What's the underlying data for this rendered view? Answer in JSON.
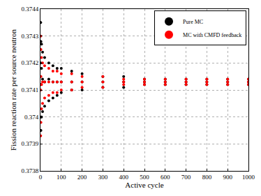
{
  "chart_data": {
    "type": "scatter",
    "x_label": "Active cycle",
    "y_label": "Fission reaction rate per source neutron",
    "x": [
      1,
      1,
      1,
      2,
      2,
      2,
      5,
      5,
      5,
      10,
      10,
      10,
      20,
      20,
      20,
      40,
      40,
      40,
      60,
      60,
      60,
      80,
      80,
      80,
      100,
      100,
      100,
      150,
      150,
      150,
      200,
      200,
      200,
      300,
      300,
      300,
      400,
      400,
      400,
      500,
      500,
      500,
      600,
      600,
      600,
      700,
      700,
      700,
      800,
      800,
      800,
      900,
      900,
      900,
      1000,
      1000,
      1000
    ],
    "series": [
      {
        "name": "Pure MC",
        "color": "#000000",
        "marker": "circle",
        "values": [
          0.37435,
          0.374,
          0.3742,
          0.37428,
          0.37395,
          0.37412,
          0.37427,
          0.374,
          0.37418,
          0.37424,
          0.37402,
          0.37414,
          0.37422,
          0.37404,
          0.37413,
          0.3742,
          0.37406,
          0.37414,
          0.37419,
          0.37407,
          0.37413,
          0.37418,
          0.37408,
          0.37413,
          0.37418,
          0.37409,
          0.37413,
          0.37417,
          0.3741,
          0.37413,
          0.37416,
          0.3741,
          0.37413,
          0.37415,
          0.37411,
          0.37413,
          0.37415,
          0.37411,
          0.37413,
          0.37414,
          0.37412,
          0.37413,
          0.37414,
          0.37412,
          0.37413,
          0.37414,
          0.37412,
          0.37413,
          0.37414,
          0.37412,
          0.37413,
          0.37414,
          0.37412,
          0.37413,
          0.37414,
          0.37412,
          0.37413
        ]
      },
      {
        "name": "MC with CMFD feedback",
        "color": "#ff0000",
        "marker": "circle",
        "values": [
          0.3743,
          0.37393,
          0.3741,
          0.37425,
          0.37398,
          0.37415,
          0.37422,
          0.37403,
          0.37412,
          0.3742,
          0.37405,
          0.37413,
          0.37419,
          0.37407,
          0.37413,
          0.37418,
          0.37408,
          0.37413,
          0.37417,
          0.37409,
          0.37413,
          0.37417,
          0.37409,
          0.37413,
          0.37416,
          0.3741,
          0.37413,
          0.37416,
          0.3741,
          0.37413,
          0.37415,
          0.37411,
          0.37413,
          0.37415,
          0.37411,
          0.37413,
          0.37414,
          0.37412,
          0.37413,
          0.37414,
          0.37412,
          0.37413,
          0.37414,
          0.37412,
          0.37413,
          0.37414,
          0.37412,
          0.37413,
          0.37414,
          0.37412,
          0.37413,
          0.37414,
          0.37412,
          0.37413,
          0.37414,
          0.37412,
          0.37413
        ]
      }
    ],
    "xlim": [
      0,
      1000
    ],
    "xticks": [
      0,
      100,
      200,
      300,
      400,
      500,
      600,
      700,
      800,
      900,
      1000
    ],
    "ylim": [
      0.3738,
      0.3744
    ],
    "yticks": [
      0.3738,
      0.3739,
      0.374,
      0.3741,
      0.3742,
      0.3743,
      0.3744
    ],
    "grid": true,
    "legend": "upper right"
  }
}
